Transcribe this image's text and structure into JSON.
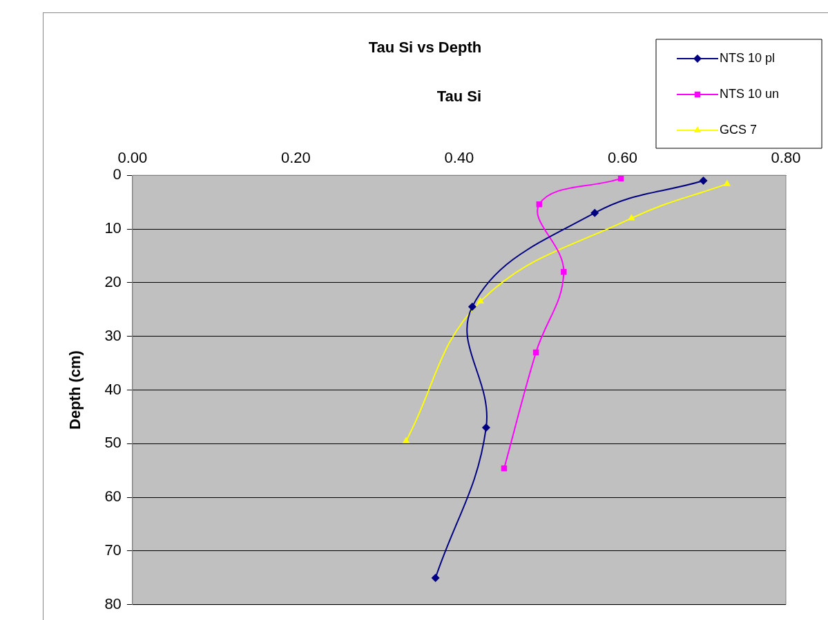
{
  "chart_data": {
    "type": "line",
    "title": "Tau Si vs Depth",
    "xlabel": "Tau Si",
    "ylabel": "Depth (cm)",
    "xlim": [
      0,
      0.8
    ],
    "xticks": [
      {
        "value": 0,
        "label": "0.00"
      },
      {
        "value": 0.2,
        "label": "0.20"
      },
      {
        "value": 0.4,
        "label": "0.40"
      },
      {
        "value": 0.6,
        "label": "0.60"
      },
      {
        "value": 0.8,
        "label": "0.80"
      }
    ],
    "ylim": [
      80,
      0
    ],
    "yticks": [
      0,
      10,
      20,
      30,
      40,
      50,
      60,
      70,
      80
    ],
    "grid": "y",
    "legend": "top right",
    "line_style": "solid",
    "series": [
      {
        "name": "NTS 10 pl",
        "color": "#000080",
        "marker": "diamond",
        "x": [
          0.699,
          0.566,
          0.416,
          0.433,
          0.371
        ],
        "values": [
          1,
          7,
          24.5,
          47,
          75
        ]
      },
      {
        "name": "NTS 10 un",
        "color": "#ff00ff",
        "marker": "square",
        "x": [
          0.598,
          0.498,
          0.528,
          0.494,
          0.455
        ],
        "values": [
          0.6,
          5.4,
          18,
          33,
          54.6
        ]
      },
      {
        "name": "GCS 7",
        "color": "#ffff00",
        "marker": "triangle",
        "x": [
          0.728,
          0.611,
          0.426,
          0.335
        ],
        "values": [
          1.6,
          8,
          23.5,
          49.5
        ]
      }
    ]
  }
}
